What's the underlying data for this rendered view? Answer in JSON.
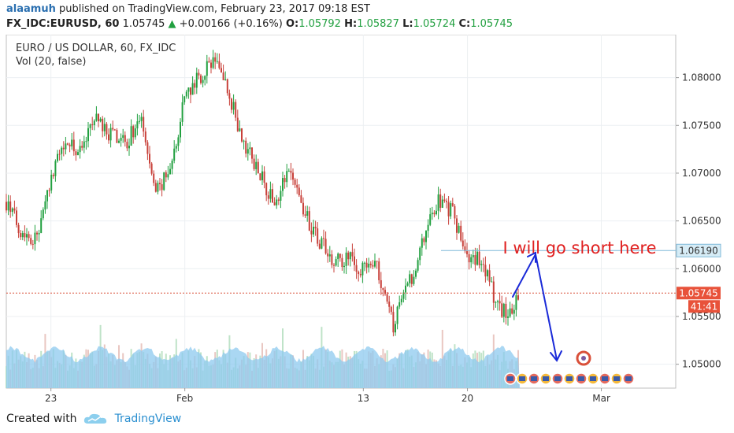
{
  "header": {
    "author": "alaamuh",
    "published": "published on TradingView.com, February 23, 2017 09:18 EST",
    "symbol": "FX_IDC:EURUSD, 60",
    "price": "1.05745",
    "arrow": "▲",
    "change": "+0.00166 (+0.16%)",
    "o_label": "O:",
    "o_value": "1.05792",
    "h_label": "H:",
    "h_value": "1.05827",
    "l_label": "L:",
    "l_value": "1.05724",
    "c_label": "C:",
    "c_value": "1.05745"
  },
  "footer": {
    "created_with": "Created with",
    "brand": "TradingView"
  },
  "colors": {
    "up": "#22a040",
    "down": "#c8413a",
    "volume": "#8ec9ef",
    "accent": "#2a8fd0",
    "annotation_text": "#e02020",
    "annotation_arrow": "#1a2ad8",
    "last_price_badge": "#e8523a",
    "marker_badge": "#7fb0cc"
  },
  "chart_data": {
    "type": "candlestick",
    "title": "EURO / US DOLLAR, 60, FX_IDC",
    "subtitle": "Vol (20, false)",
    "y_ticks": [
      "1.08000",
      "1.07500",
      "1.07000",
      "1.06500",
      "1.06000",
      "1.05500",
      "1.05000"
    ],
    "ylim": [
      1.0475,
      1.0845
    ],
    "x_ticks": [
      {
        "label": "23",
        "date": "2017-01-23"
      },
      {
        "label": "Feb",
        "date": "2017-02-01"
      },
      {
        "label": "13",
        "date": "2017-02-13"
      },
      {
        "label": "20",
        "date": "2017-02-20"
      },
      {
        "label": "Mar",
        "date": "2017-03-01"
      }
    ],
    "xlim": [
      "2017-01-20",
      "2017-03-06"
    ],
    "grid": true,
    "marked_level": {
      "value": 1.0619,
      "label": "1.06190"
    },
    "last_price": {
      "value": 1.05745,
      "label": "1.05745",
      "countdown": "41:41"
    },
    "annotation": "I will go short here",
    "path": [
      {
        "date": "2017-01-20",
        "price": 1.067
      },
      {
        "date": "2017-01-21",
        "price": 1.064
      },
      {
        "date": "2017-01-22",
        "price": 1.063
      },
      {
        "date": "2017-01-23",
        "price": 1.069
      },
      {
        "date": "2017-01-24",
        "price": 1.074
      },
      {
        "date": "2017-01-25",
        "price": 1.072
      },
      {
        "date": "2017-01-26",
        "price": 1.076
      },
      {
        "date": "2017-01-27",
        "price": 1.074
      },
      {
        "date": "2017-01-28",
        "price": 1.073
      },
      {
        "date": "2017-01-29",
        "price": 1.076
      },
      {
        "date": "2017-01-30",
        "price": 1.068
      },
      {
        "date": "2017-01-31",
        "price": 1.07
      },
      {
        "date": "2017-02-01",
        "price": 1.078
      },
      {
        "date": "2017-02-02",
        "price": 1.08
      },
      {
        "date": "2017-02-03",
        "price": 1.082
      },
      {
        "date": "2017-02-04",
        "price": 1.078
      },
      {
        "date": "2017-02-05",
        "price": 1.073
      },
      {
        "date": "2017-02-06",
        "price": 1.07
      },
      {
        "date": "2017-02-07",
        "price": 1.067
      },
      {
        "date": "2017-02-08",
        "price": 1.07
      },
      {
        "date": "2017-02-09",
        "price": 1.066
      },
      {
        "date": "2017-02-10",
        "price": 1.063
      },
      {
        "date": "2017-02-11",
        "price": 1.061
      },
      {
        "date": "2017-02-12",
        "price": 1.061
      },
      {
        "date": "2017-02-13",
        "price": 1.06
      },
      {
        "date": "2017-02-14",
        "price": 1.06
      },
      {
        "date": "2017-02-15",
        "price": 1.054
      },
      {
        "date": "2017-02-16",
        "price": 1.058
      },
      {
        "date": "2017-02-17",
        "price": 1.063
      },
      {
        "date": "2017-02-18",
        "price": 1.067
      },
      {
        "date": "2017-02-19",
        "price": 1.066
      },
      {
        "date": "2017-02-20",
        "price": 1.061
      },
      {
        "date": "2017-02-21",
        "price": 1.061
      },
      {
        "date": "2017-02-22",
        "price": 1.056
      },
      {
        "date": "2017-02-23",
        "price": 1.0555
      },
      {
        "date": "2017-02-23",
        "price": 1.0574
      }
    ]
  }
}
